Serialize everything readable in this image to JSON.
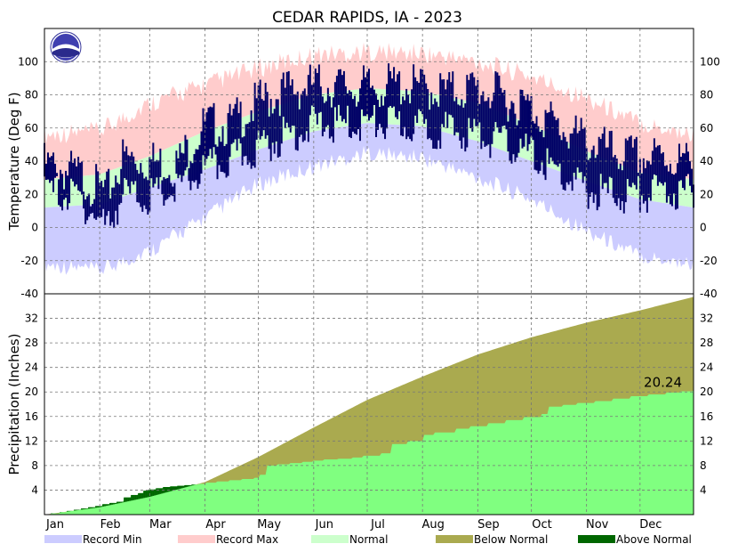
{
  "chart_data": {
    "type": "climate-summary",
    "title": "CEDAR RAPIDS, IA - 2023",
    "months": [
      "Jan",
      "Feb",
      "Mar",
      "Apr",
      "May",
      "Jun",
      "Jul",
      "Aug",
      "Sep",
      "Oct",
      "Nov",
      "Dec"
    ],
    "temperature": {
      "ylabel": "Temperature (Deg F)",
      "ylim": [
        -40,
        120
      ],
      "ticks": [
        -40,
        -20,
        0,
        20,
        40,
        60,
        80,
        100
      ],
      "grid": true,
      "record_max_anchors": [
        [
          1,
          56
        ],
        [
          32,
          58
        ],
        [
          60,
          75
        ],
        [
          91,
          86
        ],
        [
          121,
          96
        ],
        [
          152,
          104
        ],
        [
          182,
          106
        ],
        [
          213,
          105
        ],
        [
          244,
          100
        ],
        [
          274,
          91
        ],
        [
          305,
          78
        ],
        [
          335,
          63
        ],
        [
          365,
          56
        ]
      ],
      "record_min_anchors": [
        [
          1,
          -22
        ],
        [
          32,
          -26
        ],
        [
          60,
          -14
        ],
        [
          91,
          6
        ],
        [
          121,
          26
        ],
        [
          152,
          37
        ],
        [
          182,
          45
        ],
        [
          213,
          42
        ],
        [
          244,
          30
        ],
        [
          274,
          17
        ],
        [
          305,
          -2
        ],
        [
          335,
          -17
        ],
        [
          365,
          -22
        ]
      ],
      "normal_high_anchors": [
        [
          1,
          29
        ],
        [
          32,
          32
        ],
        [
          60,
          43
        ],
        [
          91,
          58
        ],
        [
          121,
          70
        ],
        [
          152,
          80
        ],
        [
          182,
          84
        ],
        [
          213,
          82
        ],
        [
          244,
          75
        ],
        [
          274,
          62
        ],
        [
          305,
          46
        ],
        [
          335,
          33
        ],
        [
          365,
          29
        ]
      ],
      "normal_low_anchors": [
        [
          1,
          12
        ],
        [
          32,
          14
        ],
        [
          60,
          24
        ],
        [
          91,
          35
        ],
        [
          121,
          47
        ],
        [
          152,
          58
        ],
        [
          182,
          63
        ],
        [
          213,
          61
        ],
        [
          244,
          52
        ],
        [
          274,
          40
        ],
        [
          305,
          28
        ],
        [
          335,
          17
        ],
        [
          365,
          12
        ]
      ],
      "observed_high_anchors": [
        [
          1,
          38
        ],
        [
          20,
          32
        ],
        [
          36,
          20
        ],
        [
          45,
          42
        ],
        [
          60,
          40
        ],
        [
          75,
          38
        ],
        [
          91,
          62
        ],
        [
          105,
          62
        ],
        [
          121,
          75
        ],
        [
          135,
          82
        ],
        [
          152,
          86
        ],
        [
          167,
          85
        ],
        [
          182,
          84
        ],
        [
          200,
          86
        ],
        [
          213,
          84
        ],
        [
          228,
          82
        ],
        [
          244,
          84
        ],
        [
          255,
          80
        ],
        [
          274,
          72
        ],
        [
          290,
          60
        ],
        [
          305,
          52
        ],
        [
          320,
          45
        ],
        [
          335,
          42
        ],
        [
          350,
          42
        ],
        [
          365,
          38
        ]
      ],
      "observed_low_anchors": [
        [
          1,
          22
        ],
        [
          20,
          18
        ],
        [
          36,
          0
        ],
        [
          45,
          20
        ],
        [
          60,
          18
        ],
        [
          75,
          22
        ],
        [
          91,
          35
        ],
        [
          105,
          40
        ],
        [
          121,
          48
        ],
        [
          135,
          55
        ],
        [
          152,
          62
        ],
        [
          167,
          62
        ],
        [
          182,
          63
        ],
        [
          200,
          62
        ],
        [
          213,
          60
        ],
        [
          228,
          58
        ],
        [
          244,
          56
        ],
        [
          255,
          52
        ],
        [
          274,
          44
        ],
        [
          290,
          32
        ],
        [
          305,
          22
        ],
        [
          320,
          20
        ],
        [
          335,
          20
        ],
        [
          350,
          22
        ],
        [
          365,
          20
        ]
      ]
    },
    "precipitation": {
      "ylabel": "Precipitation (Inches)",
      "ylim": [
        0,
        36
      ],
      "ticks": [
        4,
        8,
        12,
        16,
        20,
        24,
        28,
        32
      ],
      "right_ticks": [
        4,
        8,
        12,
        16,
        20,
        24,
        28,
        32,
        -40
      ],
      "grid": true,
      "final_total_label": "20.24",
      "normal_cumulative_anchors": [
        [
          1,
          0
        ],
        [
          32,
          1.2
        ],
        [
          60,
          2.9
        ],
        [
          91,
          5.3
        ],
        [
          121,
          9.4
        ],
        [
          152,
          14.2
        ],
        [
          182,
          18.7
        ],
        [
          213,
          22.5
        ],
        [
          244,
          26.1
        ],
        [
          274,
          28.9
        ],
        [
          305,
          31.3
        ],
        [
          335,
          33.3
        ],
        [
          365,
          35.5
        ]
      ],
      "observed_cumulative_steps": [
        [
          1,
          0
        ],
        [
          5,
          0.2
        ],
        [
          10,
          0.4
        ],
        [
          14,
          0.6
        ],
        [
          18,
          0.8
        ],
        [
          22,
          1.0
        ],
        [
          26,
          1.2
        ],
        [
          30,
          1.4
        ],
        [
          34,
          1.7
        ],
        [
          38,
          1.9
        ],
        [
          42,
          2.1
        ],
        [
          46,
          2.8
        ],
        [
          50,
          3.2
        ],
        [
          54,
          3.5
        ],
        [
          57,
          3.9
        ],
        [
          60,
          4.1
        ],
        [
          64,
          4.3
        ],
        [
          68,
          4.5
        ],
        [
          72,
          4.6
        ],
        [
          76,
          4.7
        ],
        [
          80,
          4.8
        ],
        [
          84,
          4.9
        ],
        [
          88,
          5.0
        ],
        [
          92,
          5.2
        ],
        [
          98,
          5.4
        ],
        [
          105,
          5.6
        ],
        [
          112,
          5.8
        ],
        [
          119,
          6.0
        ],
        [
          122,
          6.5
        ],
        [
          126,
          8.0
        ],
        [
          132,
          8.2
        ],
        [
          139,
          8.4
        ],
        [
          146,
          8.6
        ],
        [
          152,
          8.8
        ],
        [
          158,
          9.0
        ],
        [
          166,
          9.1
        ],
        [
          174,
          9.3
        ],
        [
          180,
          9.6
        ],
        [
          190,
          10.0
        ],
        [
          196,
          11.5
        ],
        [
          205,
          12.0
        ],
        [
          214,
          13.0
        ],
        [
          220,
          13.4
        ],
        [
          232,
          14.0
        ],
        [
          240,
          14.4
        ],
        [
          250,
          14.9
        ],
        [
          260,
          15.4
        ],
        [
          270,
          15.9
        ],
        [
          280,
          16.4
        ],
        [
          284,
          17.6
        ],
        [
          292,
          17.9
        ],
        [
          300,
          18.2
        ],
        [
          310,
          18.5
        ],
        [
          320,
          18.9
        ],
        [
          330,
          19.3
        ],
        [
          340,
          19.6
        ],
        [
          350,
          19.9
        ],
        [
          358,
          20.1
        ],
        [
          365,
          20.24
        ]
      ]
    },
    "legend": [
      {
        "label": "Record Min",
        "color": "#ccccff"
      },
      {
        "label": "Record Max",
        "color": "#ffcccc"
      },
      {
        "label": "Normal",
        "color": "#ccffcc"
      },
      {
        "label": "Below Normal",
        "color": "#aaaa4f"
      },
      {
        "label": "Above Normal",
        "color": "#006600"
      }
    ],
    "colors": {
      "record_min": "#ccccff",
      "record_max": "#ffcccc",
      "normal": "#ccffcc",
      "observed": "#000066",
      "below_normal": "#aaaa4f",
      "above_normal": "#006600",
      "observed_precip": "#80ff80"
    }
  }
}
